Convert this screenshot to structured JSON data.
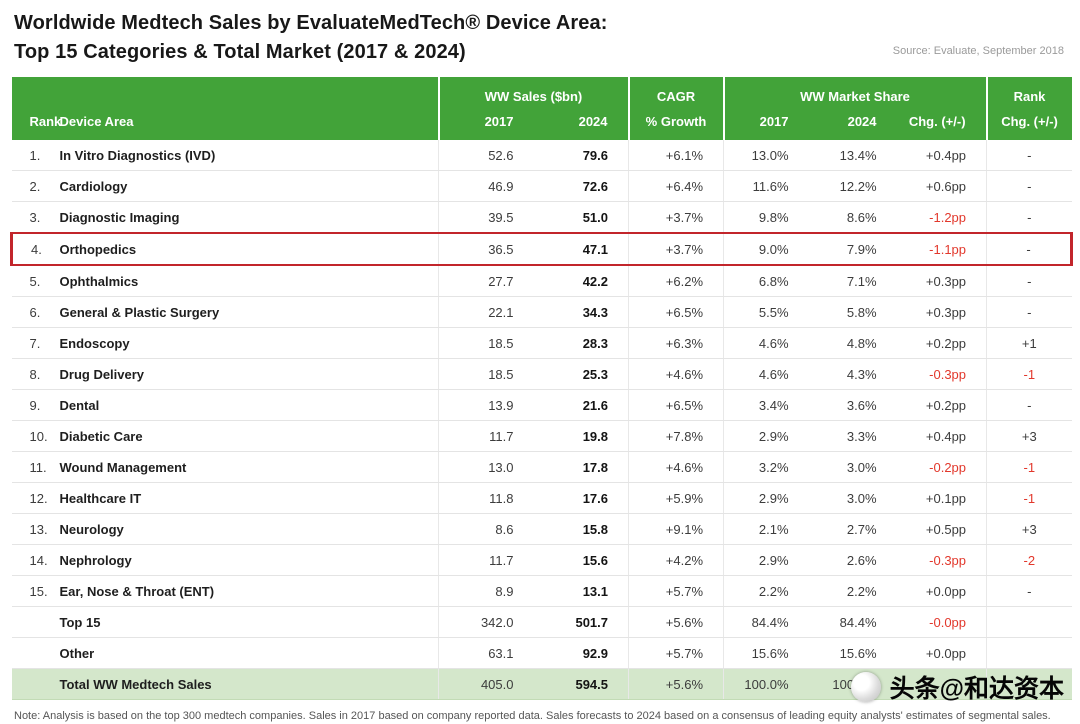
{
  "header": {
    "title_line1": "Worldwide Medtech Sales by EvaluateMedTech® Device Area:",
    "title_line2": "Top 15 Categories & Total Market (2017 & 2024)",
    "source": "Source: Evaluate, September 2018"
  },
  "chart_data": {
    "type": "table",
    "title": "Worldwide Medtech Sales by EvaluateMedTech Device Area: Top 15 Categories & Total Market (2017 & 2024)",
    "column_groups": [
      {
        "label": "",
        "span": 2
      },
      {
        "label": "WW Sales ($bn)",
        "span": 2
      },
      {
        "label": "CAGR",
        "span": 1
      },
      {
        "label": "WW Market Share",
        "span": 3
      },
      {
        "label": "Rank",
        "span": 1
      }
    ],
    "columns": [
      "Rank",
      "Device Area",
      "2017",
      "2024",
      "% Growth",
      "2017",
      "2024",
      "Chg. (+/-)",
      "Chg. (+/-)"
    ],
    "highlight_row_index": 3,
    "rows": [
      [
        "1.",
        "In Vitro Diagnostics (IVD)",
        "52.6",
        "79.6",
        "+6.1%",
        "13.0%",
        "13.4%",
        "+0.4pp",
        "-"
      ],
      [
        "2.",
        "Cardiology",
        "46.9",
        "72.6",
        "+6.4%",
        "11.6%",
        "12.2%",
        "+0.6pp",
        "-"
      ],
      [
        "3.",
        "Diagnostic Imaging",
        "39.5",
        "51.0",
        "+3.7%",
        "9.8%",
        "8.6%",
        "-1.2pp",
        "-"
      ],
      [
        "4.",
        "Orthopedics",
        "36.5",
        "47.1",
        "+3.7%",
        "9.0%",
        "7.9%",
        "-1.1pp",
        "-"
      ],
      [
        "5.",
        "Ophthalmics",
        "27.7",
        "42.2",
        "+6.2%",
        "6.8%",
        "7.1%",
        "+0.3pp",
        "-"
      ],
      [
        "6.",
        "General & Plastic Surgery",
        "22.1",
        "34.3",
        "+6.5%",
        "5.5%",
        "5.8%",
        "+0.3pp",
        "-"
      ],
      [
        "7.",
        "Endoscopy",
        "18.5",
        "28.3",
        "+6.3%",
        "4.6%",
        "4.8%",
        "+0.2pp",
        "+1"
      ],
      [
        "8.",
        "Drug Delivery",
        "18.5",
        "25.3",
        "+4.6%",
        "4.6%",
        "4.3%",
        "-0.3pp",
        "-1"
      ],
      [
        "9.",
        "Dental",
        "13.9",
        "21.6",
        "+6.5%",
        "3.4%",
        "3.6%",
        "+0.2pp",
        "-"
      ],
      [
        "10.",
        "Diabetic Care",
        "11.7",
        "19.8",
        "+7.8%",
        "2.9%",
        "3.3%",
        "+0.4pp",
        "+3"
      ],
      [
        "11.",
        "Wound Management",
        "13.0",
        "17.8",
        "+4.6%",
        "3.2%",
        "3.0%",
        "-0.2pp",
        "-1"
      ],
      [
        "12.",
        "Healthcare IT",
        "11.8",
        "17.6",
        "+5.9%",
        "2.9%",
        "3.0%",
        "+0.1pp",
        "-1"
      ],
      [
        "13.",
        "Neurology",
        "8.6",
        "15.8",
        "+9.1%",
        "2.1%",
        "2.7%",
        "+0.5pp",
        "+3"
      ],
      [
        "14.",
        "Nephrology",
        "11.7",
        "15.6",
        "+4.2%",
        "2.9%",
        "2.6%",
        "-0.3pp",
        "-2"
      ],
      [
        "15.",
        "Ear, Nose & Throat (ENT)",
        "8.9",
        "13.1",
        "+5.7%",
        "2.2%",
        "2.2%",
        "+0.0pp",
        "-"
      ]
    ],
    "summary_rows": [
      [
        "",
        "Top 15",
        "342.0",
        "501.7",
        "+5.6%",
        "84.4%",
        "84.4%",
        "-0.0pp",
        ""
      ],
      [
        "",
        "Other",
        "63.1",
        "92.9",
        "+5.7%",
        "15.6%",
        "15.6%",
        "+0.0pp",
        ""
      ],
      [
        "",
        "Total WW Medtech Sales",
        "405.0",
        "594.5",
        "+5.6%",
        "100.0%",
        "100.0%",
        "",
        ""
      ]
    ]
  },
  "note": "Note: Analysis is based on the top 300 medtech companies. Sales in 2017 based on company reported data. Sales forecasts to 2024 based on a consensus of leading equity analysts' estimates of segmental sales.",
  "watermark": {
    "text": "头条@和达资本"
  },
  "colors": {
    "header_green": "#42A339",
    "total_row_green": "#D4E7CB",
    "negative_red": "#E2382C",
    "highlight_border_red": "#C2252B"
  }
}
